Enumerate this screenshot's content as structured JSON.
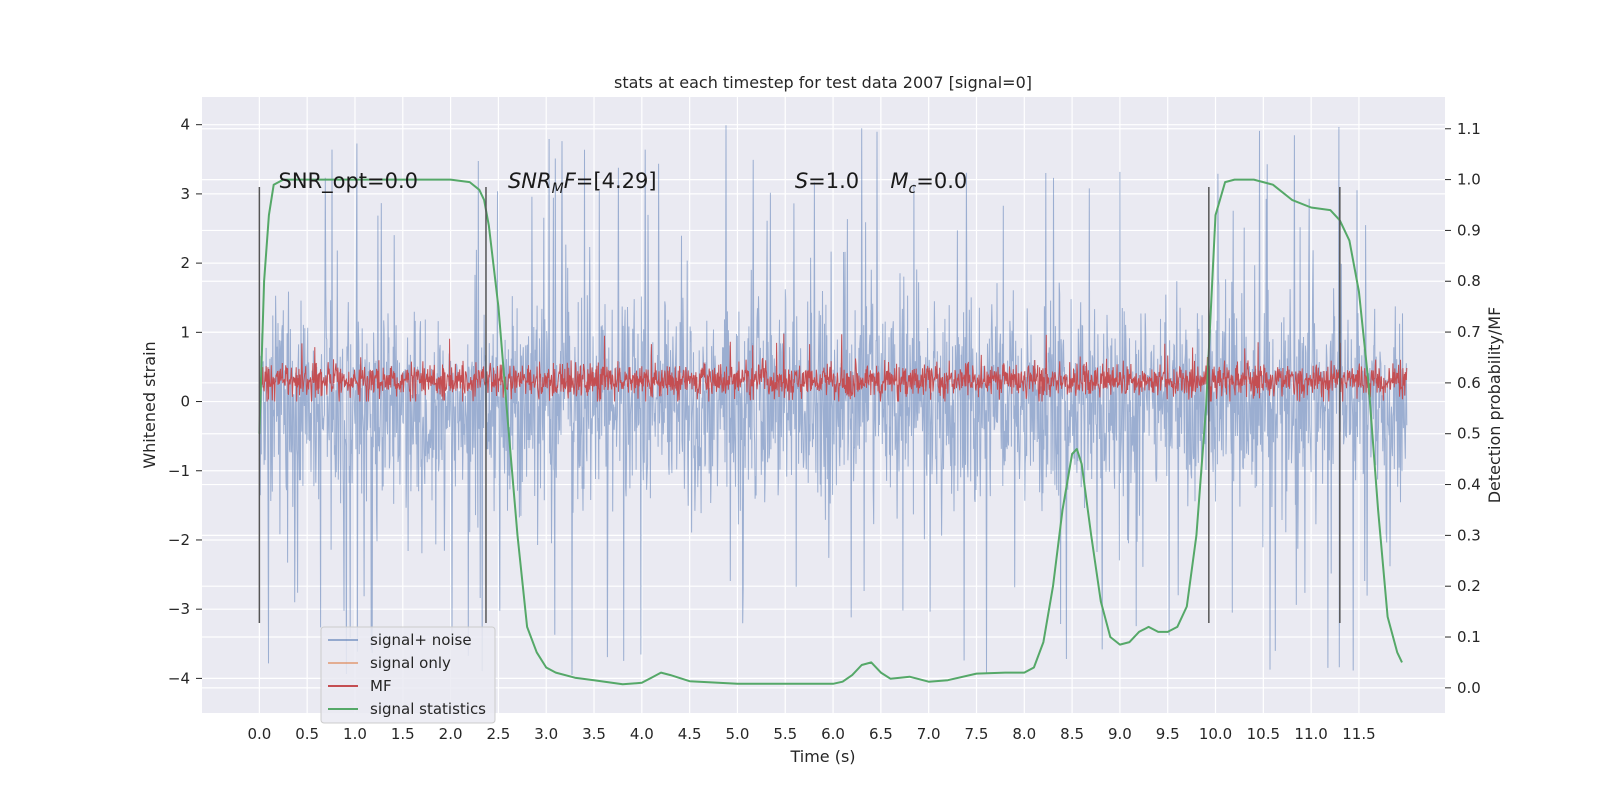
{
  "chart_data": {
    "type": "line",
    "title": "stats at each timestep for test data 2007 [signal=0]",
    "xlabel": "Time (s)",
    "ylabel": "Whitened strain",
    "y2label": "Detection probability/MF",
    "xlim": [
      -0.6,
      12.4
    ],
    "ylim": [
      -4.5,
      4.4
    ],
    "y2lim": [
      -0.0495,
      1.1625
    ],
    "x_ticks": [
      "0.0",
      "0.5",
      "1.0",
      "1.5",
      "2.0",
      "2.5",
      "3.0",
      "3.5",
      "4.0",
      "4.5",
      "5.0",
      "5.5",
      "6.0",
      "6.5",
      "7.0",
      "7.5",
      "8.0",
      "8.5",
      "9.0",
      "9.5",
      "10.0",
      "10.5",
      "11.0",
      "11.5"
    ],
    "y_ticks": [
      "4",
      "3",
      "2",
      "1",
      "0",
      "−1",
      "−2",
      "−3",
      "−4"
    ],
    "y2_ticks": [
      "1.1",
      "1.0",
      "0.9",
      "0.8",
      "0.7",
      "0.6",
      "0.5",
      "0.4",
      "0.3",
      "0.2",
      "0.1",
      "0.0"
    ],
    "grid": true,
    "legend_position": "lower-left",
    "legend": [
      "signal+ noise",
      "signal only",
      "MF",
      "signal statistics"
    ],
    "colors": {
      "signal_noise": "#4c72b0",
      "signal_only": "#dd8452",
      "mf": "#c44e52",
      "stats": "#55a868",
      "background": "#eaeaf2",
      "vlines": "#555555"
    },
    "annotations": [
      {
        "x": 0.2,
        "text": "SNR_opt=0.0"
      },
      {
        "x": 2.6,
        "text_prefix": "SNR",
        "text_sub": "M",
        "text_italic": "F",
        "text_suffix": "=[4.29]"
      },
      {
        "x": 5.6,
        "text_italic": "S",
        "text_suffix": "=1.0"
      },
      {
        "x": 6.6,
        "text_italic": "M",
        "text_sub": "c",
        "text_suffix": "=0.0"
      }
    ],
    "vertical_lines": [
      0.0,
      2.37,
      9.93,
      11.3
    ],
    "vertical_line_range": [
      -3.2,
      3.1
    ],
    "signal_noise_envelope": {
      "x_range": [
        0.0,
        12.0
      ],
      "typical": [
        -1.9,
        1.9
      ],
      "peaks": [
        -4.0,
        4.0
      ]
    },
    "mf_band": {
      "x_range": [
        0.0,
        12.0
      ],
      "range": [
        0.0,
        0.6
      ]
    },
    "signal_statistics": {
      "x": [
        0.0,
        0.05,
        0.1,
        0.15,
        0.25,
        0.4,
        0.6,
        1.0,
        1.5,
        2.0,
        2.2,
        2.3,
        2.35,
        2.4,
        2.5,
        2.6,
        2.7,
        2.8,
        2.9,
        3.0,
        3.1,
        3.3,
        3.5,
        3.8,
        4.0,
        4.1,
        4.2,
        4.3,
        4.5,
        5.0,
        5.5,
        6.0,
        6.1,
        6.2,
        6.3,
        6.4,
        6.5,
        6.6,
        6.8,
        7.0,
        7.2,
        7.5,
        7.8,
        8.0,
        8.1,
        8.2,
        8.3,
        8.4,
        8.5,
        8.55,
        8.6,
        8.7,
        8.8,
        8.9,
        9.0,
        9.1,
        9.2,
        9.3,
        9.4,
        9.5,
        9.6,
        9.7,
        9.8,
        9.9,
        10.0,
        10.1,
        10.2,
        10.4,
        10.6,
        10.8,
        11.0,
        11.2,
        11.3,
        11.4,
        11.5,
        11.6,
        11.7,
        11.8,
        11.9,
        11.95
      ],
      "y": [
        0.5,
        0.8,
        0.93,
        0.99,
        1.0,
        1.0,
        1.0,
        1.0,
        1.0,
        1.0,
        0.995,
        0.98,
        0.96,
        0.91,
        0.75,
        0.52,
        0.3,
        0.12,
        0.07,
        0.04,
        0.03,
        0.02,
        0.015,
        0.007,
        0.01,
        0.02,
        0.03,
        0.025,
        0.013,
        0.008,
        0.008,
        0.008,
        0.012,
        0.025,
        0.045,
        0.05,
        0.03,
        0.018,
        0.022,
        0.012,
        0.015,
        0.028,
        0.03,
        0.03,
        0.04,
        0.09,
        0.2,
        0.35,
        0.46,
        0.47,
        0.44,
        0.3,
        0.17,
        0.1,
        0.085,
        0.09,
        0.11,
        0.12,
        0.11,
        0.11,
        0.12,
        0.16,
        0.3,
        0.55,
        0.93,
        0.995,
        1.0,
        1.0,
        0.99,
        0.96,
        0.945,
        0.94,
        0.92,
        0.88,
        0.78,
        0.6,
        0.35,
        0.14,
        0.07,
        0.05
      ]
    }
  }
}
